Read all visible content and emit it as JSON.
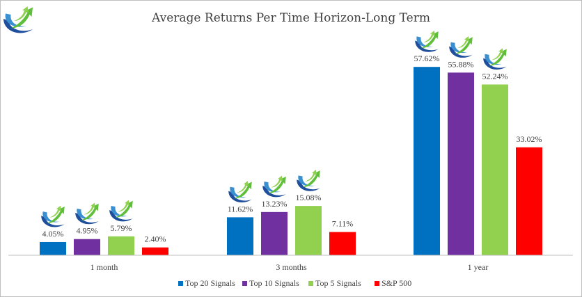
{
  "chart_data": {
    "type": "bar",
    "title": "Average Returns Per Time Horizon-Long Term",
    "categories": [
      "1 month",
      "3 months",
      "1 year"
    ],
    "series": [
      {
        "name": "Top 20 Signals",
        "color": "#0070c0",
        "values": [
          4.05,
          11.62,
          57.62
        ],
        "labels": [
          "4.05%",
          "11.62%",
          "57.62%"
        ]
      },
      {
        "name": "Top 10 Signals",
        "color": "#7030a0",
        "values": [
          4.95,
          13.23,
          55.88
        ],
        "labels": [
          "4.95%",
          "13.23%",
          "55.88%"
        ]
      },
      {
        "name": "Top 5 Signals",
        "color": "#92d050",
        "values": [
          5.79,
          15.08,
          52.24
        ],
        "labels": [
          "5.79%",
          "15.08%",
          "52.24%"
        ]
      },
      {
        "name": "S&P 500",
        "color": "#ff0000",
        "values": [
          2.4,
          7.11,
          33.02
        ],
        "labels": [
          "2.40%",
          "7.11%",
          "33.02%"
        ]
      }
    ],
    "ylim": [
      0,
      60
    ],
    "grid": false,
    "legend": "bottom",
    "logo_icon": "growth-arrow-logo-icon"
  }
}
